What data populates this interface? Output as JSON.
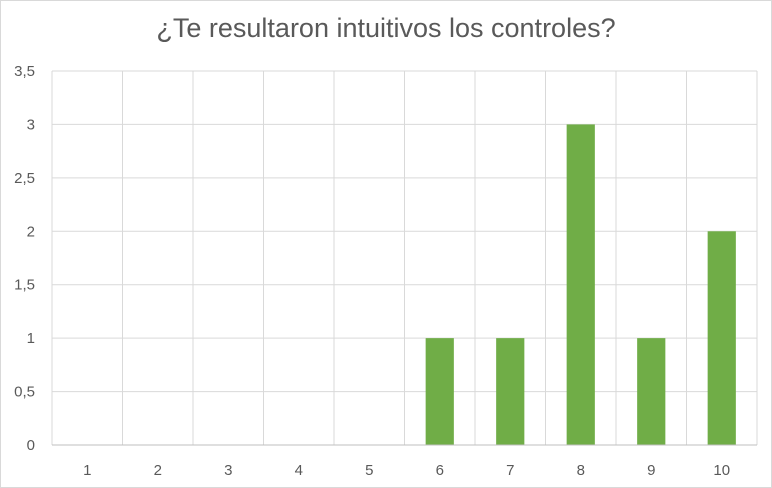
{
  "chart_data": {
    "type": "bar",
    "title": "¿Te resultaron intuitivos los controles?",
    "categories": [
      "1",
      "2",
      "3",
      "4",
      "5",
      "6",
      "7",
      "8",
      "9",
      "10"
    ],
    "series": [
      {
        "values": [
          0,
          0,
          0,
          0,
          0,
          1,
          1,
          3,
          1,
          2
        ]
      }
    ],
    "y_ticks": [
      "0",
      "0,5",
      "1",
      "1,5",
      "2",
      "2,5",
      "3",
      "3,5"
    ],
    "ylim": [
      0,
      3.5
    ],
    "grid": "on",
    "legend": "none",
    "colors": {
      "bar": "#70AD47",
      "grid": "#d9d9d9",
      "text": "#595959"
    }
  }
}
